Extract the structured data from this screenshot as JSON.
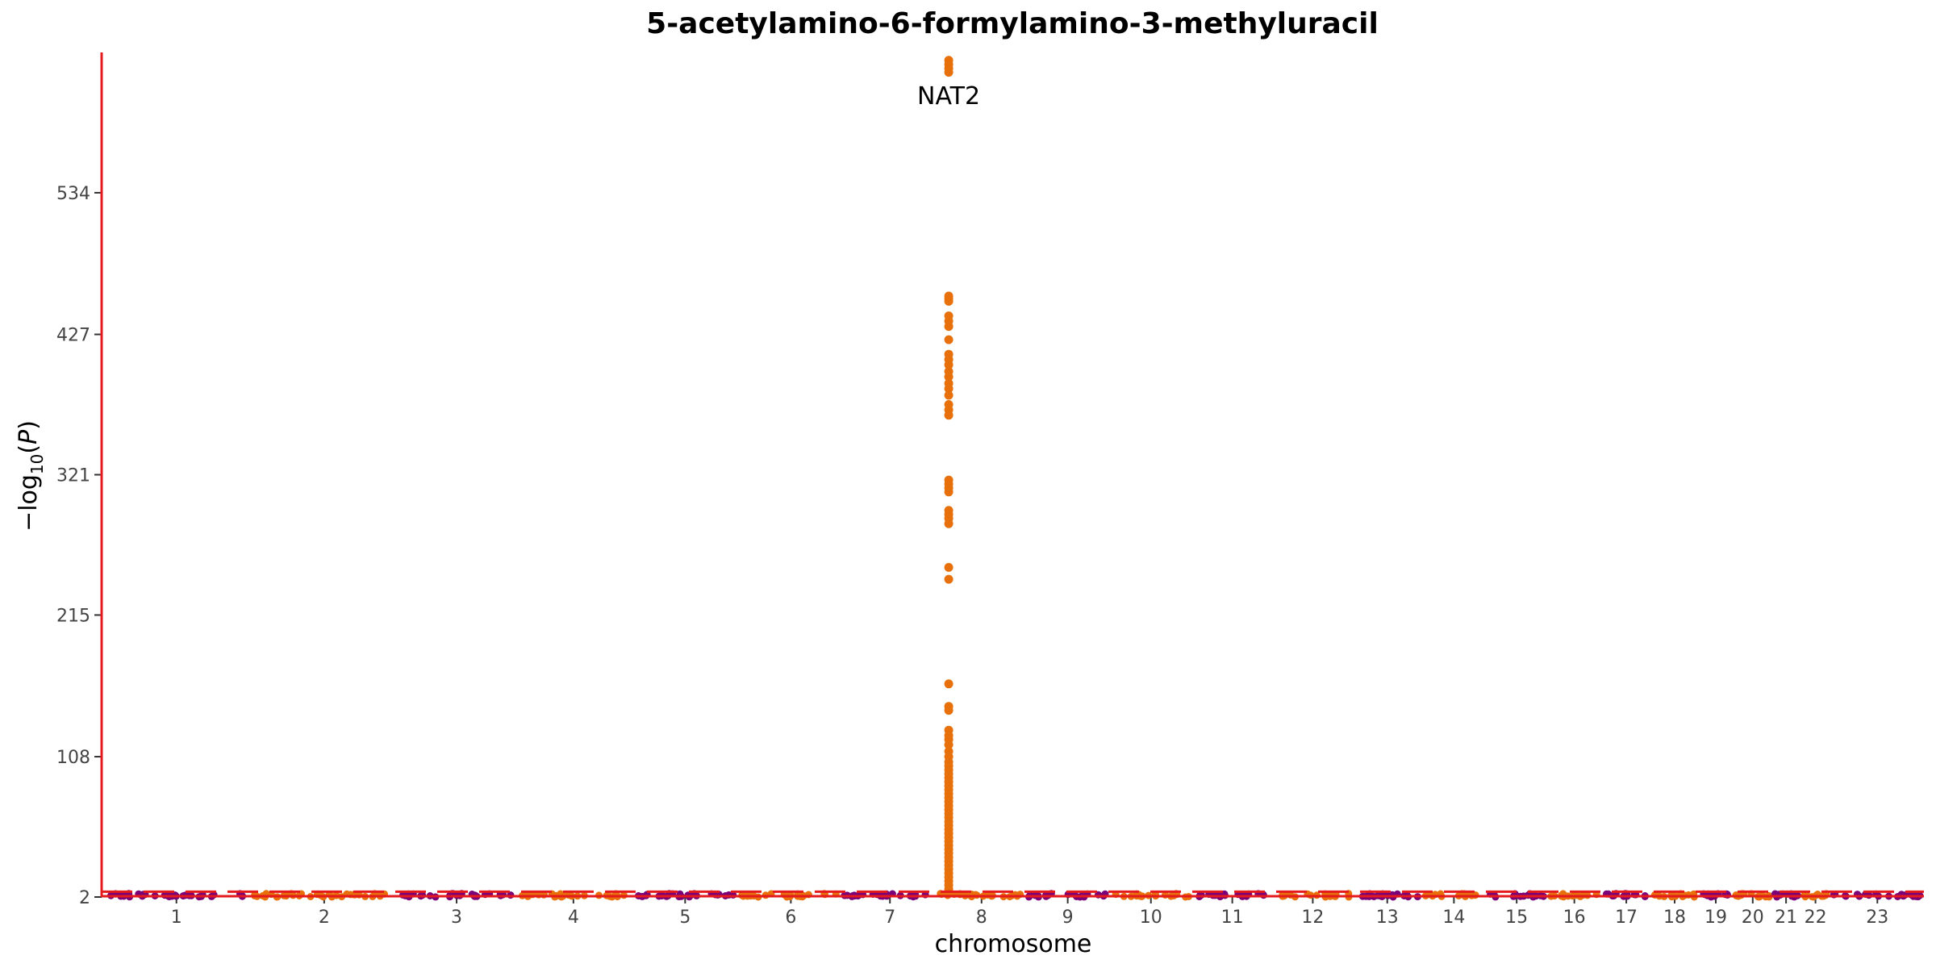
{
  "chart_data": {
    "type": "scatter",
    "subtype": "manhattan",
    "title": "5-acetylamino-6-formylamino-3-methyluracil",
    "xlabel": "chromosome",
    "ylabel": "−log10(P)",
    "ylim": [
      2,
      640
    ],
    "y_ticks": [
      2,
      108,
      215,
      321,
      427,
      534
    ],
    "y_tick_labels": [
      "2",
      "108",
      "215",
      "321",
      "427",
      "534"
    ],
    "chromosomes": [
      {
        "label": "1",
        "length": 249
      },
      {
        "label": "2",
        "length": 243
      },
      {
        "label": "3",
        "length": 198
      },
      {
        "label": "4",
        "length": 191
      },
      {
        "label": "5",
        "length": 181
      },
      {
        "label": "6",
        "length": 171
      },
      {
        "label": "7",
        "length": 159
      },
      {
        "label": "8",
        "length": 146
      },
      {
        "label": "9",
        "length": 141
      },
      {
        "label": "10",
        "length": 136
      },
      {
        "label": "11",
        "length": 135
      },
      {
        "label": "12",
        "length": 133
      },
      {
        "label": "13",
        "length": 115
      },
      {
        "label": "14",
        "length": 107
      },
      {
        "label": "15",
        "length": 102
      },
      {
        "label": "16",
        "length": 90
      },
      {
        "label": "17",
        "length": 83
      },
      {
        "label": "18",
        "length": 78
      },
      {
        "label": "19",
        "length": 59
      },
      {
        "label": "20",
        "length": 64
      },
      {
        "label": "21",
        "length": 47
      },
      {
        "label": "22",
        "length": 51
      },
      {
        "label": "23",
        "length": 155
      }
    ],
    "colors": {
      "chrom_odd": "#7a0177",
      "chrom_even": "#e8700a",
      "threshold": "#e41a1c",
      "axis_line": "#e41a1c"
    },
    "threshold_y": 6,
    "peak": {
      "chromosome": "8",
      "position_mb": 18.3,
      "gene": "NAT2",
      "y_values": [
        634,
        631,
        628,
        625,
        456,
        454,
        452,
        441,
        437,
        433,
        423,
        412,
        408,
        404,
        399,
        395,
        390,
        386,
        381,
        374,
        370,
        366,
        317,
        314,
        311,
        308,
        294,
        291,
        288,
        284,
        251,
        242,
        163,
        146,
        143,
        128,
        124,
        121,
        117,
        112,
        108,
        104,
        101,
        98,
        95,
        92,
        89,
        86,
        83,
        80,
        77,
        74,
        71,
        68,
        65,
        62,
        59,
        56,
        53,
        50,
        47,
        44,
        41,
        38,
        35,
        32,
        29,
        26,
        23,
        20,
        17,
        14,
        11,
        8,
        5
      ]
    },
    "annotations": [
      {
        "text": "NAT2",
        "chromosome": "8",
        "y": 607
      }
    ],
    "grid": false
  }
}
